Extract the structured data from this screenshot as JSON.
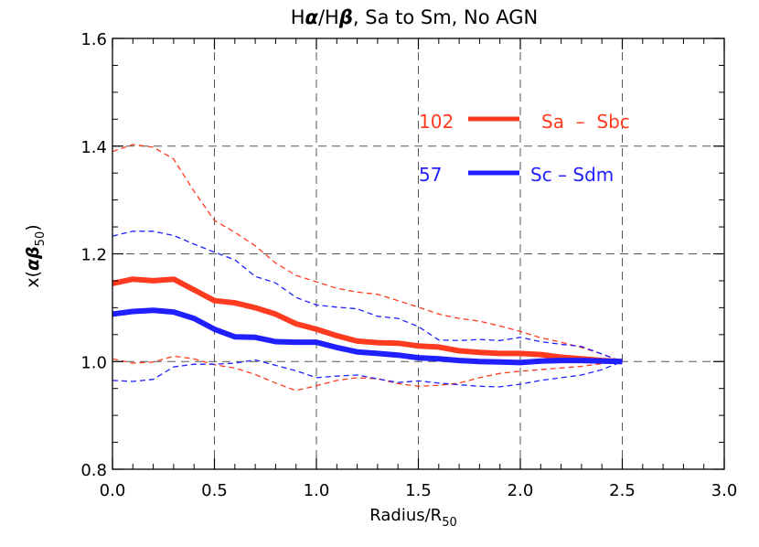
{
  "chart_data": {
    "type": "line",
    "title_parts": [
      "H",
      "α",
      "/H",
      "β",
      ", Sa to Sm, No AGN"
    ],
    "xlabel_main": "Radius/R",
    "xlabel_sub": "50",
    "ylabel_parts": [
      "x(",
      "αβ",
      "50",
      ")"
    ],
    "xlim": [
      0.0,
      3.0
    ],
    "ylim": [
      0.8,
      1.6
    ],
    "xticks": [
      0.0,
      0.5,
      1.0,
      1.5,
      2.0,
      2.5,
      3.0
    ],
    "xtick_labels": [
      "0.0",
      "0.5",
      "1.0",
      "1.5",
      "2.0",
      "2.5",
      "3.0"
    ],
    "yticks": [
      0.8,
      1.0,
      1.2,
      1.4,
      1.6
    ],
    "ytick_labels": [
      "0.8",
      "1.0",
      "1.2",
      "1.4",
      "1.6"
    ],
    "grid": true,
    "x": [
      0.0,
      0.1,
      0.2,
      0.3,
      0.4,
      0.5,
      0.6,
      0.7,
      0.8,
      0.9,
      1.0,
      1.1,
      1.2,
      1.3,
      1.4,
      1.5,
      1.6,
      1.7,
      1.8,
      1.9,
      2.0,
      2.1,
      2.2,
      2.3,
      2.4,
      2.5
    ],
    "series": [
      {
        "name": "Sa - Sbc",
        "count": "102",
        "color": "#ff3b1f",
        "values": [
          1.145,
          1.153,
          1.15,
          1.153,
          1.133,
          1.113,
          1.109,
          1.1,
          1.088,
          1.07,
          1.06,
          1.048,
          1.038,
          1.035,
          1.034,
          1.029,
          1.027,
          1.02,
          1.017,
          1.015,
          1.015,
          1.013,
          1.008,
          1.005,
          1.002,
          1.0
        ],
        "upper": [
          1.39,
          1.403,
          1.398,
          1.376,
          1.316,
          1.262,
          1.24,
          1.215,
          1.183,
          1.16,
          1.148,
          1.136,
          1.129,
          1.125,
          1.113,
          1.101,
          1.088,
          1.08,
          1.075,
          1.066,
          1.056,
          1.044,
          1.036,
          1.026,
          1.014,
          1.0
        ],
        "lower": [
          1.005,
          0.997,
          0.999,
          1.01,
          1.005,
          0.994,
          0.988,
          0.976,
          0.96,
          0.946,
          0.955,
          0.965,
          0.97,
          0.968,
          0.959,
          0.954,
          0.956,
          0.96,
          0.97,
          0.978,
          0.982,
          0.985,
          0.988,
          0.991,
          0.996,
          1.0
        ]
      },
      {
        "name": "Sc - Sdm",
        "count": "57",
        "color": "#1f1fff",
        "values": [
          1.088,
          1.093,
          1.095,
          1.092,
          1.08,
          1.06,
          1.046,
          1.045,
          1.037,
          1.036,
          1.036,
          1.026,
          1.018,
          1.015,
          1.012,
          1.007,
          1.005,
          1.002,
          1.0,
          0.999,
          0.998,
          1.001,
          1.002,
          1.002,
          1.001,
          1.0
        ],
        "upper": [
          1.233,
          1.242,
          1.242,
          1.234,
          1.218,
          1.203,
          1.189,
          1.158,
          1.146,
          1.119,
          1.105,
          1.101,
          1.098,
          1.084,
          1.08,
          1.065,
          1.04,
          1.039,
          1.041,
          1.039,
          1.045,
          1.037,
          1.032,
          1.028,
          1.014,
          1.0
        ],
        "lower": [
          0.965,
          0.963,
          0.967,
          0.99,
          0.995,
          0.995,
          0.997,
          1.003,
          0.993,
          0.983,
          0.97,
          0.973,
          0.975,
          0.968,
          0.961,
          0.964,
          0.96,
          0.957,
          0.954,
          0.953,
          0.958,
          0.965,
          0.97,
          0.975,
          0.985,
          1.0
        ]
      }
    ]
  }
}
